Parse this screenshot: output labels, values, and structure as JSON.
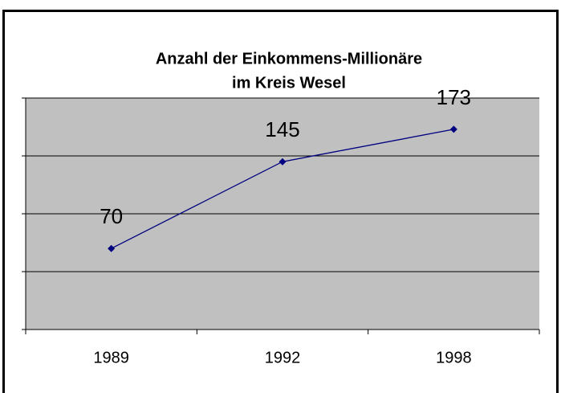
{
  "chart_data": {
    "type": "line",
    "title": [
      "Anzahl der Einkommens-Millionäre",
      "im Kreis Wesel"
    ],
    "categories": [
      "1989",
      "1992",
      "1998"
    ],
    "series": [
      {
        "color": "#000080",
        "values": [
          70,
          145,
          173
        ]
      }
    ],
    "ylim": [
      0,
      200
    ],
    "yticks": [
      0,
      50,
      100,
      150,
      200
    ],
    "grid": true,
    "plot_color": "#c0c0c0"
  }
}
